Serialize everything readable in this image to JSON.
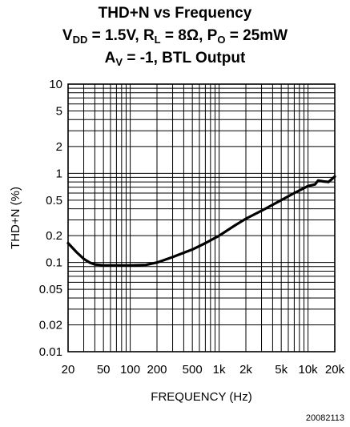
{
  "chart_data": {
    "type": "line",
    "title": {
      "line1": "THD+N vs Frequency",
      "line2": {
        "vdd_label": "V",
        "vdd_sub": "DD",
        "vdd_value": " = 1.5V, ",
        "rl_label": "R",
        "rl_sub": "L",
        "rl_value": " = 8Ω, ",
        "po_label": "P",
        "po_sub": "O",
        "po_value": " = 25mW"
      },
      "line3": {
        "av_label": "A",
        "av_sub": "V",
        "av_value": " = -1, BTL Output"
      }
    },
    "xlabel": "FREQUENCY (Hz)",
    "ylabel": "THD+N (%)",
    "x_scale": "log",
    "y_scale": "log",
    "xlim": [
      20,
      20000
    ],
    "ylim": [
      0.01,
      10
    ],
    "grid": true,
    "x_ticks": [
      {
        "value": 20,
        "label": "20"
      },
      {
        "value": 50,
        "label": "50"
      },
      {
        "value": 100,
        "label": "100"
      },
      {
        "value": 200,
        "label": "200"
      },
      {
        "value": 500,
        "label": "500"
      },
      {
        "value": 1000,
        "label": "1k"
      },
      {
        "value": 2000,
        "label": "2k"
      },
      {
        "value": 5000,
        "label": "5k"
      },
      {
        "value": 10000,
        "label": "10k"
      },
      {
        "value": 20000,
        "label": "20k"
      }
    ],
    "y_ticks": [
      {
        "value": 0.01,
        "label": "0.01"
      },
      {
        "value": 0.02,
        "label": "0.02"
      },
      {
        "value": 0.05,
        "label": "0.05"
      },
      {
        "value": 0.1,
        "label": "0.1"
      },
      {
        "value": 0.2,
        "label": "0.2"
      },
      {
        "value": 0.5,
        "label": "0.5"
      },
      {
        "value": 1,
        "label": "1"
      },
      {
        "value": 2,
        "label": "2"
      },
      {
        "value": 5,
        "label": "5"
      },
      {
        "value": 10,
        "label": "10"
      }
    ],
    "series": [
      {
        "color": "#000000",
        "x": [
          20,
          25,
          30,
          35,
          40,
          50,
          70,
          100,
          150,
          200,
          300,
          500,
          700,
          1000,
          1500,
          2000,
          3000,
          5000,
          7000,
          10000,
          12000,
          13000,
          15000,
          17000,
          20000
        ],
        "y": [
          0.165,
          0.13,
          0.11,
          0.1,
          0.095,
          0.093,
          0.093,
          0.093,
          0.094,
          0.1,
          0.115,
          0.14,
          0.165,
          0.2,
          0.26,
          0.31,
          0.38,
          0.5,
          0.6,
          0.72,
          0.75,
          0.83,
          0.81,
          0.8,
          0.92
        ]
      }
    ]
  },
  "figure_id": "20082113"
}
